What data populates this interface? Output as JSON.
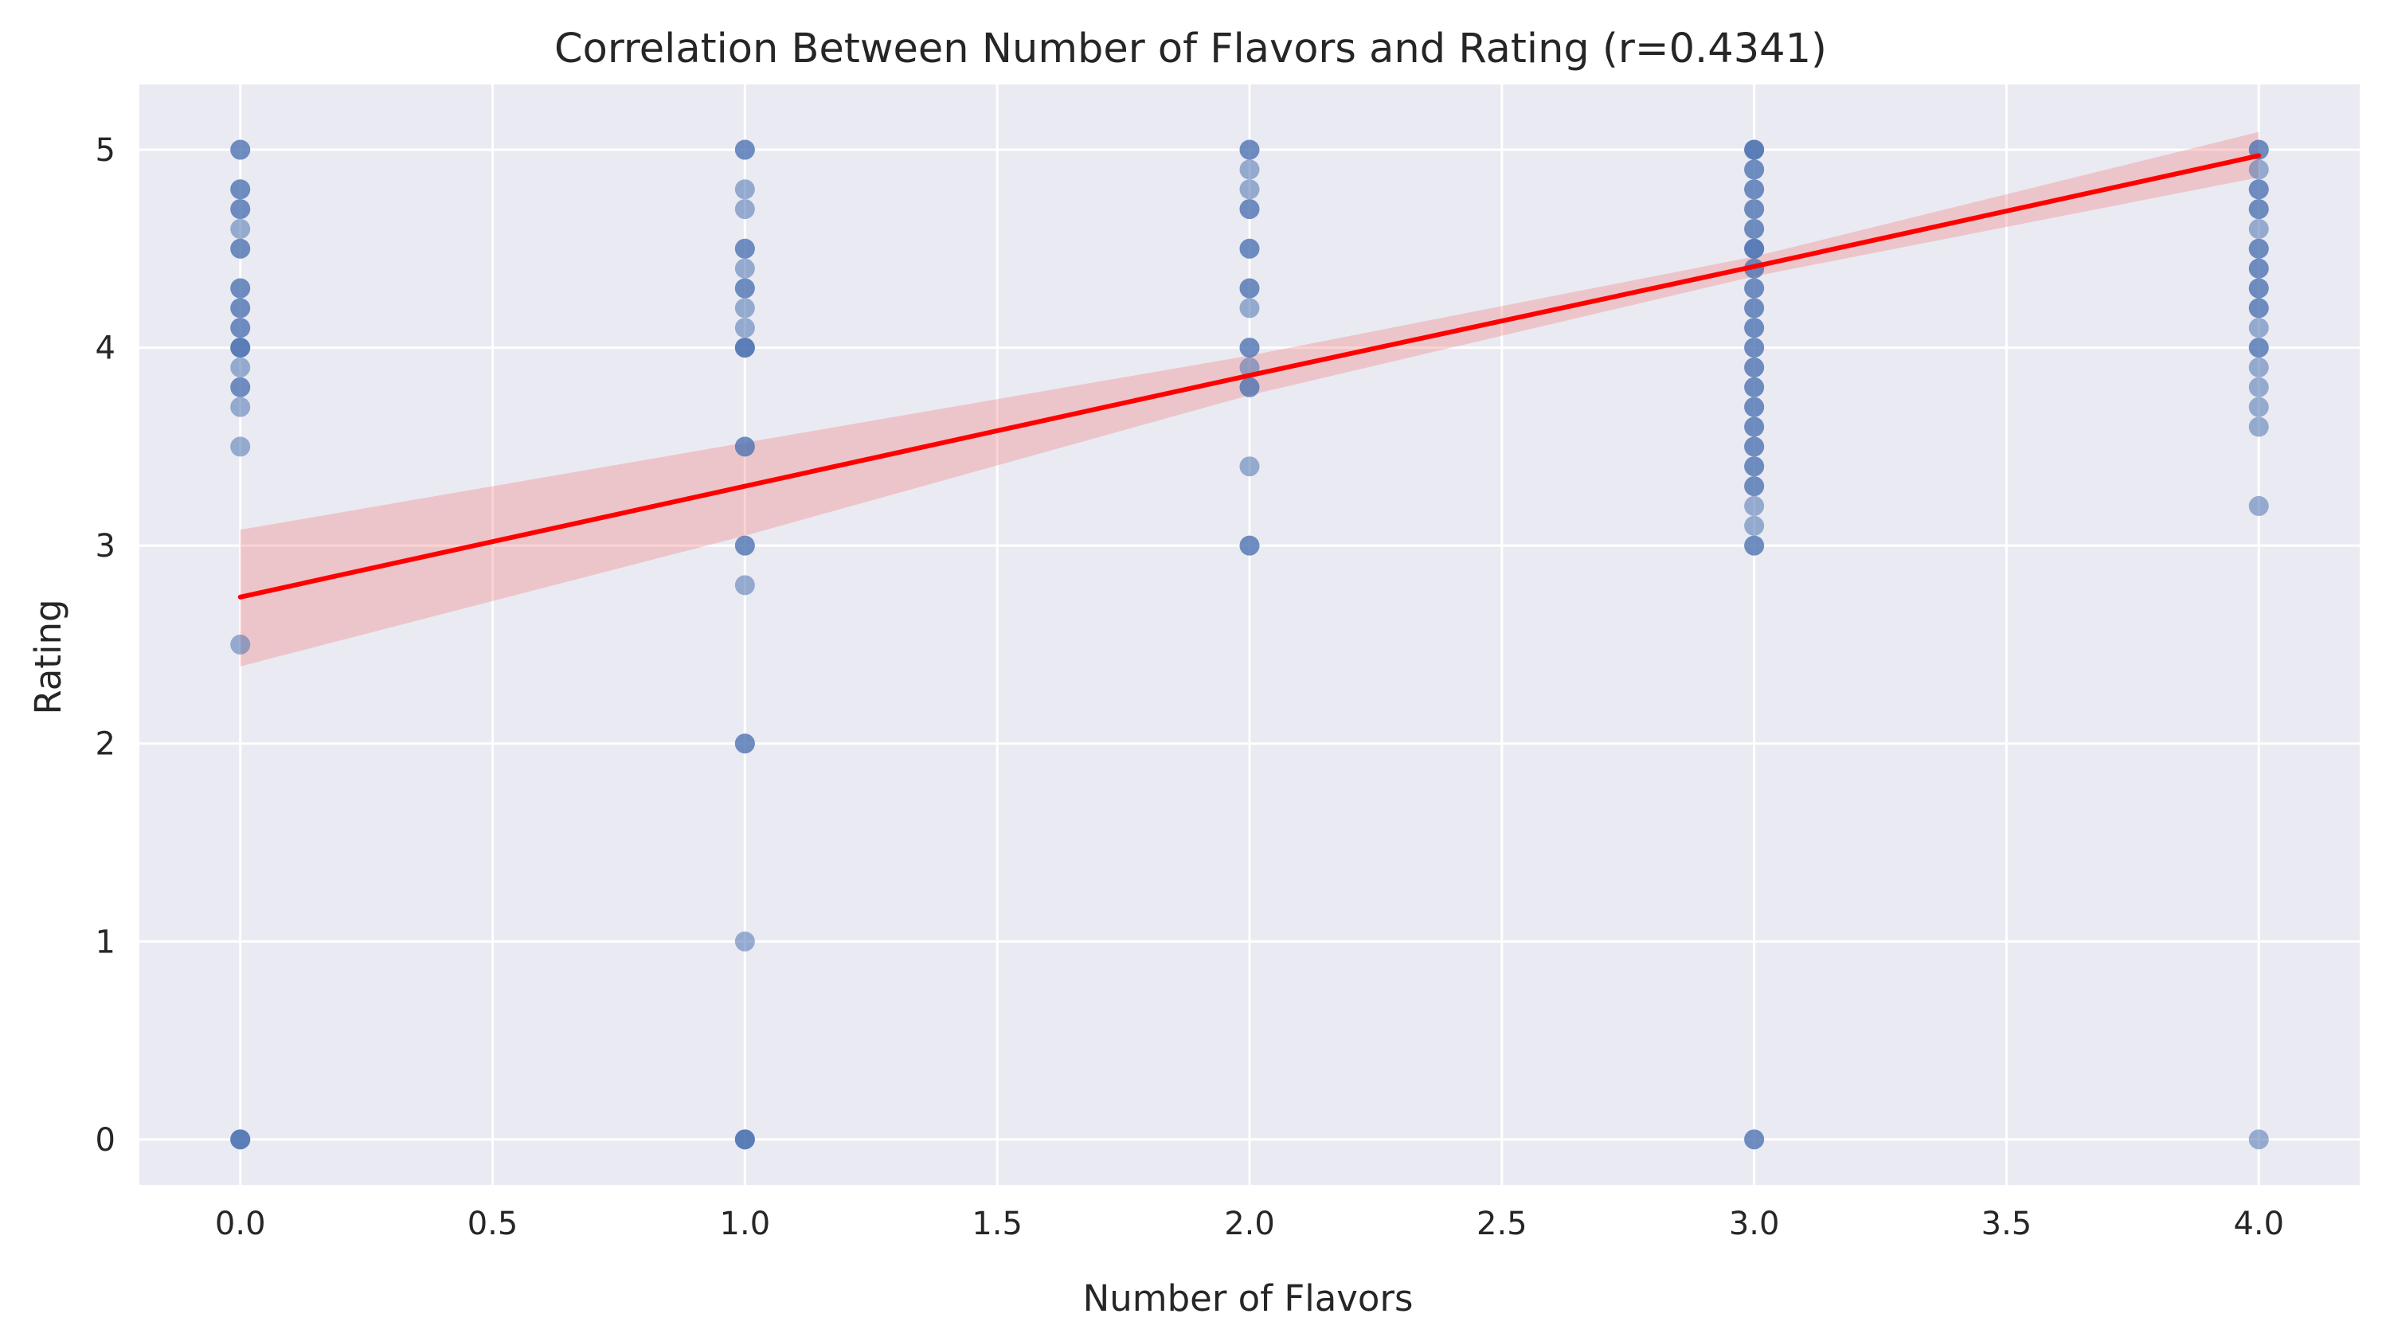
{
  "chart_data": {
    "type": "scatter",
    "title": "Correlation Between Number of Flavors and Rating (r=0.4341)",
    "xlabel": "Number of Flavors",
    "ylabel": "Rating",
    "xlim": [
      -0.2,
      4.2
    ],
    "ylim": [
      -0.23,
      5.33
    ],
    "xticks": [
      0.0,
      0.5,
      1.0,
      1.5,
      2.0,
      2.5,
      3.0,
      3.5,
      4.0
    ],
    "xtick_labels": [
      "0.0",
      "0.5",
      "1.0",
      "1.5",
      "2.0",
      "2.5",
      "3.0",
      "3.5",
      "4.0"
    ],
    "yticks": [
      0,
      1,
      2,
      3,
      4,
      5
    ],
    "ytick_labels": [
      "0",
      "1",
      "2",
      "3",
      "4",
      "5"
    ],
    "grid": true,
    "background_color": "#eaeaf2",
    "grid_color": "#ffffff",
    "point_color": "#4c72b0",
    "point_alpha": 0.55,
    "points": [
      {
        "x": 0,
        "y": 5.0
      },
      {
        "x": 0,
        "y": 5.0
      },
      {
        "x": 0,
        "y": 4.8
      },
      {
        "x": 0,
        "y": 4.8
      },
      {
        "x": 0,
        "y": 4.7
      },
      {
        "x": 0,
        "y": 4.7
      },
      {
        "x": 0,
        "y": 4.6
      },
      {
        "x": 0,
        "y": 4.5
      },
      {
        "x": 0,
        "y": 4.5
      },
      {
        "x": 0,
        "y": 4.3
      },
      {
        "x": 0,
        "y": 4.3
      },
      {
        "x": 0,
        "y": 4.2
      },
      {
        "x": 0,
        "y": 4.2
      },
      {
        "x": 0,
        "y": 4.1
      },
      {
        "x": 0,
        "y": 4.1
      },
      {
        "x": 0,
        "y": 4.0
      },
      {
        "x": 0,
        "y": 4.0
      },
      {
        "x": 0,
        "y": 4.0
      },
      {
        "x": 0,
        "y": 3.9
      },
      {
        "x": 0,
        "y": 3.8
      },
      {
        "x": 0,
        "y": 3.8
      },
      {
        "x": 0,
        "y": 3.7
      },
      {
        "x": 0,
        "y": 3.5
      },
      {
        "x": 0,
        "y": 2.5
      },
      {
        "x": 0,
        "y": 0.0
      },
      {
        "x": 0,
        "y": 0.0
      },
      {
        "x": 0,
        "y": 0.0
      },
      {
        "x": 1,
        "y": 5.0
      },
      {
        "x": 1,
        "y": 5.0
      },
      {
        "x": 1,
        "y": 4.8
      },
      {
        "x": 1,
        "y": 4.7
      },
      {
        "x": 1,
        "y": 4.5
      },
      {
        "x": 1,
        "y": 4.5
      },
      {
        "x": 1,
        "y": 4.4
      },
      {
        "x": 1,
        "y": 4.3
      },
      {
        "x": 1,
        "y": 4.3
      },
      {
        "x": 1,
        "y": 4.2
      },
      {
        "x": 1,
        "y": 4.1
      },
      {
        "x": 1,
        "y": 4.0
      },
      {
        "x": 1,
        "y": 4.0
      },
      {
        "x": 1,
        "y": 4.0
      },
      {
        "x": 1,
        "y": 3.5
      },
      {
        "x": 1,
        "y": 3.5
      },
      {
        "x": 1,
        "y": 3.0
      },
      {
        "x": 1,
        "y": 3.0
      },
      {
        "x": 1,
        "y": 2.8
      },
      {
        "x": 1,
        "y": 2.0
      },
      {
        "x": 1,
        "y": 2.0
      },
      {
        "x": 1,
        "y": 1.0
      },
      {
        "x": 1,
        "y": 0.0
      },
      {
        "x": 1,
        "y": 0.0
      },
      {
        "x": 1,
        "y": 0.0
      },
      {
        "x": 2,
        "y": 5.0
      },
      {
        "x": 2,
        "y": 5.0
      },
      {
        "x": 2,
        "y": 4.9
      },
      {
        "x": 2,
        "y": 4.8
      },
      {
        "x": 2,
        "y": 4.7
      },
      {
        "x": 2,
        "y": 4.7
      },
      {
        "x": 2,
        "y": 4.5
      },
      {
        "x": 2,
        "y": 4.5
      },
      {
        "x": 2,
        "y": 4.3
      },
      {
        "x": 2,
        "y": 4.3
      },
      {
        "x": 2,
        "y": 4.2
      },
      {
        "x": 2,
        "y": 4.0
      },
      {
        "x": 2,
        "y": 4.0
      },
      {
        "x": 2,
        "y": 3.9
      },
      {
        "x": 2,
        "y": 3.8
      },
      {
        "x": 2,
        "y": 3.8
      },
      {
        "x": 2,
        "y": 3.4
      },
      {
        "x": 2,
        "y": 3.0
      },
      {
        "x": 2,
        "y": 3.0
      },
      {
        "x": 3,
        "y": 5.0
      },
      {
        "x": 3,
        "y": 5.0
      },
      {
        "x": 3,
        "y": 5.0
      },
      {
        "x": 3,
        "y": 4.9
      },
      {
        "x": 3,
        "y": 4.9
      },
      {
        "x": 3,
        "y": 4.8
      },
      {
        "x": 3,
        "y": 4.8
      },
      {
        "x": 3,
        "y": 4.7
      },
      {
        "x": 3,
        "y": 4.7
      },
      {
        "x": 3,
        "y": 4.6
      },
      {
        "x": 3,
        "y": 4.6
      },
      {
        "x": 3,
        "y": 4.5
      },
      {
        "x": 3,
        "y": 4.5
      },
      {
        "x": 3,
        "y": 4.5
      },
      {
        "x": 3,
        "y": 4.4
      },
      {
        "x": 3,
        "y": 4.4
      },
      {
        "x": 3,
        "y": 4.3
      },
      {
        "x": 3,
        "y": 4.3
      },
      {
        "x": 3,
        "y": 4.2
      },
      {
        "x": 3,
        "y": 4.2
      },
      {
        "x": 3,
        "y": 4.1
      },
      {
        "x": 3,
        "y": 4.1
      },
      {
        "x": 3,
        "y": 4.0
      },
      {
        "x": 3,
        "y": 4.0
      },
      {
        "x": 3,
        "y": 3.9
      },
      {
        "x": 3,
        "y": 3.9
      },
      {
        "x": 3,
        "y": 3.8
      },
      {
        "x": 3,
        "y": 3.8
      },
      {
        "x": 3,
        "y": 3.7
      },
      {
        "x": 3,
        "y": 3.7
      },
      {
        "x": 3,
        "y": 3.6
      },
      {
        "x": 3,
        "y": 3.6
      },
      {
        "x": 3,
        "y": 3.5
      },
      {
        "x": 3,
        "y": 3.5
      },
      {
        "x": 3,
        "y": 3.4
      },
      {
        "x": 3,
        "y": 3.4
      },
      {
        "x": 3,
        "y": 3.3
      },
      {
        "x": 3,
        "y": 3.3
      },
      {
        "x": 3,
        "y": 3.2
      },
      {
        "x": 3,
        "y": 3.1
      },
      {
        "x": 3,
        "y": 3.0
      },
      {
        "x": 3,
        "y": 3.0
      },
      {
        "x": 3,
        "y": 0.0
      },
      {
        "x": 3,
        "y": 0.0
      },
      {
        "x": 4,
        "y": 5.0
      },
      {
        "x": 4,
        "y": 5.0
      },
      {
        "x": 4,
        "y": 4.9
      },
      {
        "x": 4,
        "y": 4.8
      },
      {
        "x": 4,
        "y": 4.8
      },
      {
        "x": 4,
        "y": 4.7
      },
      {
        "x": 4,
        "y": 4.7
      },
      {
        "x": 4,
        "y": 4.6
      },
      {
        "x": 4,
        "y": 4.5
      },
      {
        "x": 4,
        "y": 4.5
      },
      {
        "x": 4,
        "y": 4.4
      },
      {
        "x": 4,
        "y": 4.4
      },
      {
        "x": 4,
        "y": 4.3
      },
      {
        "x": 4,
        "y": 4.3
      },
      {
        "x": 4,
        "y": 4.2
      },
      {
        "x": 4,
        "y": 4.2
      },
      {
        "x": 4,
        "y": 4.1
      },
      {
        "x": 4,
        "y": 4.0
      },
      {
        "x": 4,
        "y": 4.0
      },
      {
        "x": 4,
        "y": 3.9
      },
      {
        "x": 4,
        "y": 3.8
      },
      {
        "x": 4,
        "y": 3.7
      },
      {
        "x": 4,
        "y": 3.6
      },
      {
        "x": 4,
        "y": 3.2
      },
      {
        "x": 4,
        "y": 0.0
      }
    ],
    "regression": {
      "color": "#ff0000",
      "x": [
        0,
        1,
        2,
        3,
        4
      ],
      "y": [
        2.74,
        3.3,
        3.86,
        4.41,
        4.97
      ],
      "ci_lower": [
        2.39,
        3.05,
        3.76,
        4.36,
        4.86
      ],
      "ci_upper": [
        3.08,
        3.52,
        3.96,
        4.46,
        5.09
      ],
      "band_color": "#f08080",
      "band_alpha": 0.35
    }
  }
}
